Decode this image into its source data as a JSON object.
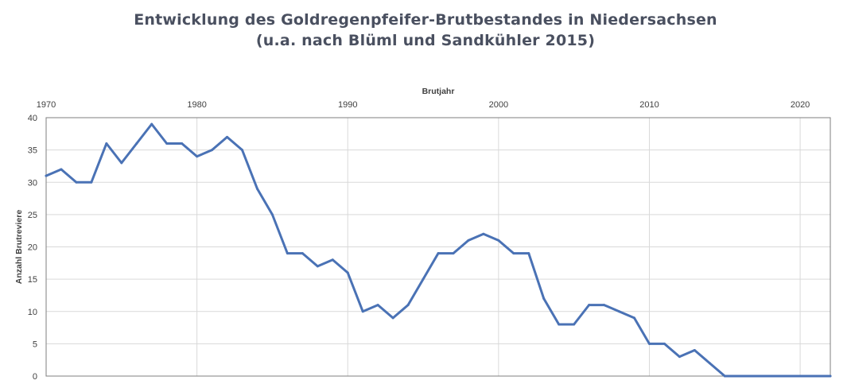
{
  "title_line1": "Entwicklung des Goldregenpfeifer-Brutbestandes  in Niedersachsen",
  "title_line2": "(u.a. nach Blüml und Sandkühler 2015)",
  "chart_data": {
    "type": "line",
    "xlabel": "Brutjahr",
    "ylabel": "Anzahl Brutreviere",
    "xaxis_position": "top",
    "xlim": [
      1970,
      2022
    ],
    "ylim": [
      0,
      40
    ],
    "x_ticks": [
      1970,
      1980,
      1990,
      2000,
      2010,
      2020
    ],
    "y_ticks": [
      0,
      5,
      10,
      15,
      20,
      25,
      30,
      35,
      40
    ],
    "grid": true,
    "line_color": "#4a72b5",
    "x": [
      1970,
      1971,
      1972,
      1973,
      1974,
      1975,
      1976,
      1977,
      1978,
      1979,
      1980,
      1981,
      1982,
      1983,
      1984,
      1985,
      1986,
      1987,
      1988,
      1989,
      1990,
      1991,
      1992,
      1993,
      1994,
      1995,
      1996,
      1997,
      1998,
      1999,
      2000,
      2001,
      2002,
      2003,
      2004,
      2005,
      2006,
      2007,
      2008,
      2009,
      2010,
      2011,
      2012,
      2013,
      2014,
      2015,
      2016,
      2017,
      2018,
      2019,
      2020,
      2021,
      2022
    ],
    "values": [
      31,
      32,
      30,
      30,
      36,
      33,
      36,
      39,
      36,
      36,
      34,
      35,
      37,
      35,
      29,
      25,
      19,
      19,
      17,
      18,
      16,
      10,
      11,
      9,
      11,
      15,
      19,
      19,
      21,
      22,
      21,
      19,
      19,
      12,
      8,
      8,
      11,
      11,
      10,
      9,
      5,
      5,
      3,
      4,
      2,
      0,
      0,
      0,
      0,
      0,
      0,
      0,
      0
    ]
  }
}
